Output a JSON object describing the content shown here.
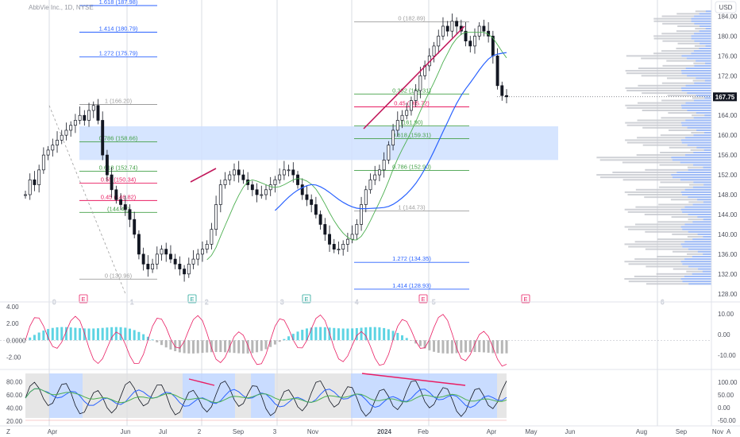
{
  "header": {
    "symbol_title": "AbbVie Inc., 1D, NYSE",
    "currency": "USD",
    "scale_mode_left": "Z",
    "scale_mode_right": "A"
  },
  "chart_data": [
    {
      "type": "candlestick",
      "title": "AbbVie Inc., 1D, NYSE",
      "ylabel": "USD",
      "ylim": [
        127,
        186
      ],
      "y_ticks": [
        "184.00",
        "180.00",
        "176.00",
        "172.00",
        "168.00",
        "164.00",
        "160.00",
        "156.00",
        "152.00",
        "148.00",
        "144.00",
        "140.00",
        "136.00",
        "132.00",
        "128.00"
      ],
      "last_price": "167.75",
      "x_ticks": [
        "Apr",
        "Jun",
        "Jul",
        "2",
        "Sep",
        "3",
        "Nov",
        "2024",
        "Feb",
        "Apr",
        "May",
        "Jun",
        "Aug",
        "Sep",
        "Nov"
      ],
      "ohlc_close_approx": [
        148,
        151,
        150,
        153,
        156,
        157,
        158,
        159,
        160,
        161,
        162,
        163,
        164,
        163,
        165,
        166,
        163,
        156,
        152,
        149,
        147,
        146,
        145,
        143,
        140,
        136,
        134,
        133,
        134,
        136,
        137,
        136,
        135,
        134,
        133,
        132,
        134,
        135,
        136,
        137,
        138,
        141,
        146,
        150,
        151,
        152,
        153,
        152,
        151,
        150,
        149,
        148,
        148,
        149,
        150,
        151,
        152,
        153,
        153,
        152,
        150,
        148,
        147,
        146,
        144,
        142,
        140,
        138,
        137,
        137,
        138,
        139,
        140,
        142,
        146,
        149,
        151,
        152,
        153,
        155,
        158,
        161,
        163,
        164,
        165,
        167,
        169,
        172,
        174,
        176,
        178,
        180,
        182,
        181,
        183,
        182,
        181,
        179,
        178,
        180,
        182,
        181,
        180,
        176,
        170,
        168,
        167.75
      ],
      "fib_left": {
        "levels": [
          {
            "label": "1.618 (187.98)",
            "value": 187.98
          },
          {
            "label": "1.414 (180.79)",
            "value": 180.79
          },
          {
            "label": "1.272 (175.79)",
            "value": 175.79
          },
          {
            "label": "1 (166.20)",
            "value": 166.2
          },
          {
            "label": "0.786 (158.66)",
            "value": 158.66
          },
          {
            "label": "0.618 (152.74)",
            "value": 152.74
          },
          {
            "label": "0.55 (150.34)",
            "value": 150.34
          },
          {
            "label": "0.45 (146.82)",
            "value": 146.82
          },
          {
            "label": "(144.42)",
            "value": 144.42
          },
          {
            "label": "0 (130.96)",
            "value": 130.96
          }
        ]
      },
      "fib_right": {
        "levels": [
          {
            "label": "0 (182.89)",
            "value": 182.89
          },
          {
            "label": "0.382 (168.31)",
            "value": 168.31
          },
          {
            "label": "0.45 (165.72)",
            "value": 165.72
          },
          {
            "label": "(161.90)",
            "value": 161.9
          },
          {
            "label": "0.618 (159.31)",
            "value": 159.31
          },
          {
            "label": "0.786 (152.90)",
            "value": 152.9
          },
          {
            "label": "1 (144.73)",
            "value": 144.73
          },
          {
            "label": "1.272 (134.35)",
            "value": 134.35
          },
          {
            "label": "1.414 (128.93)",
            "value": 128.93
          }
        ]
      },
      "zone": {
        "from": 155.0,
        "to": 161.8
      },
      "event_markers": [
        "E",
        "E",
        "E",
        "E",
        "E"
      ],
      "period_labels": [
        "0",
        "1",
        "2",
        "3",
        "4",
        "5",
        "6"
      ],
      "colors": {
        "up": "#26a69a",
        "down": "#ef5350",
        "candles": "#131722",
        "ma_blue": "#2962ff",
        "ma_green": "#4caf50",
        "fib_blue": "#2962ff",
        "fib_red": "#e91e63",
        "fib_green": "#43a047",
        "zone": "#cfe0ff"
      }
    },
    {
      "type": "line",
      "name": "oscillator-1",
      "y_ticks_left": [
        "4.00",
        "2.00",
        "0.0000",
        "-2.00"
      ],
      "y_ticks_right": [
        "10.00",
        "0.00",
        "-10.00"
      ],
      "ylim": [
        -3.2,
        4.2
      ],
      "colors": {
        "line": "#e91e63",
        "wave_pos": "#4dd0e1",
        "wave_neg": "#b0b0b0"
      }
    },
    {
      "type": "line",
      "name": "oscillator-2",
      "y_ticks_left": [
        "80.00",
        "60.00",
        "40.00",
        "20.00"
      ],
      "y_ticks_right": [
        "100.00",
        "50.00",
        "0.00",
        "-50.00"
      ],
      "ylim": [
        15,
        95
      ],
      "colors": {
        "line": "#131722",
        "blue": "#2962ff",
        "green": "#4caf50",
        "zone_hi": "#bbd3ff",
        "zone_lo": "#e0e0e0",
        "divergence": "#e91e63"
      }
    }
  ]
}
